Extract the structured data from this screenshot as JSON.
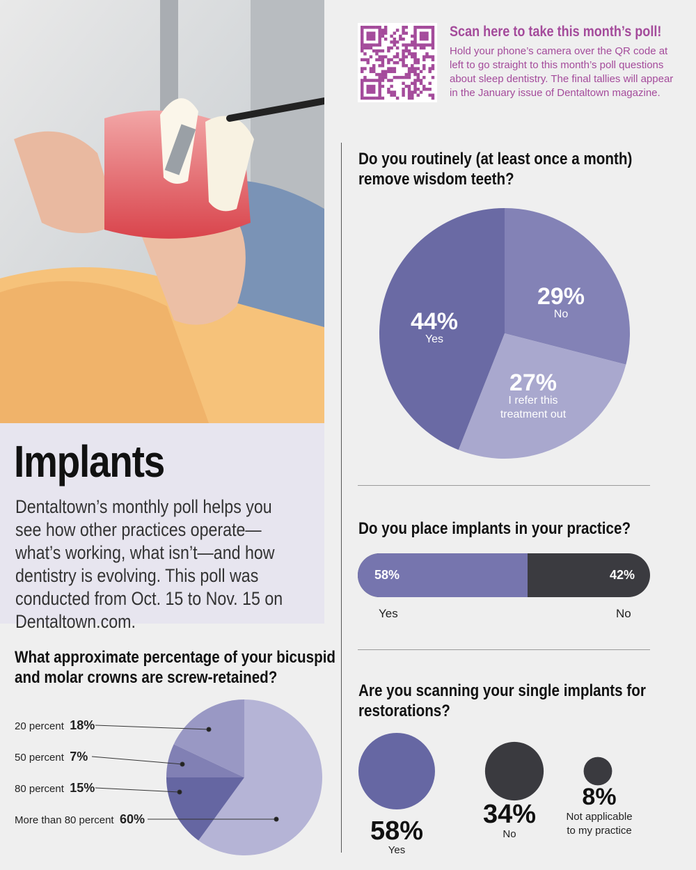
{
  "qr": {
    "title": "Scan here to take this month’s poll!",
    "body": "Hold your phone’s camera over the QR code at left to go straight to this month’s poll questions about sleep dentistry. The final tallies will appear in the January issue of Dentaltown magazine."
  },
  "intro": {
    "title": "Implants",
    "body": "Dentaltown’s monthly poll helps you see how other practices operate—what’s working, what isn’t—and how dentistry is evolving. This poll was conducted from Oct. 15 to Nov. 15 on Dentaltown.com."
  },
  "colors": {
    "purple": "#6a6aa4",
    "mid": "#8382b6",
    "light": "#a9a8ce",
    "dark": "#3b3b40",
    "accent": "#a44b9b"
  },
  "q1": {
    "question_line1": "Do you routinely (at least once a month)",
    "question_line2": "remove wisdom teeth?",
    "slices": [
      {
        "label": "No",
        "value": 29,
        "pct": "29%"
      },
      {
        "label_line1": "I refer this",
        "label_line2": "treatment out",
        "value": 27,
        "pct": "27%"
      },
      {
        "label": "Yes",
        "value": 44,
        "pct": "44%"
      }
    ]
  },
  "q2": {
    "question": "Do you place implants in your practice?",
    "yes": {
      "label": "Yes",
      "value": 58,
      "pct": "58%"
    },
    "no": {
      "label": "No",
      "value": 42,
      "pct": "42%"
    }
  },
  "q3": {
    "question_line1": "What approximate percentage of your bicuspid",
    "question_line2": "and molar crowns are screw-retained?",
    "slices": [
      {
        "label": "20 percent",
        "value": 18,
        "pct": "18%"
      },
      {
        "label": "50 percent",
        "value": 7,
        "pct": "7%"
      },
      {
        "label": "80 percent",
        "value": 15,
        "pct": "15%"
      },
      {
        "label": "More than 80 percent",
        "value": 60,
        "pct": "60%"
      }
    ]
  },
  "q4": {
    "question_line1": "Are you scanning your single implants for",
    "question_line2": "restorations?",
    "items": [
      {
        "label": "Yes",
        "value": 58,
        "pct": "58%"
      },
      {
        "label": "No",
        "value": 34,
        "pct": "34%"
      },
      {
        "label_line1": "Not applicable",
        "label_line2": "to my practice",
        "value": 8,
        "pct": "8%"
      }
    ]
  }
}
